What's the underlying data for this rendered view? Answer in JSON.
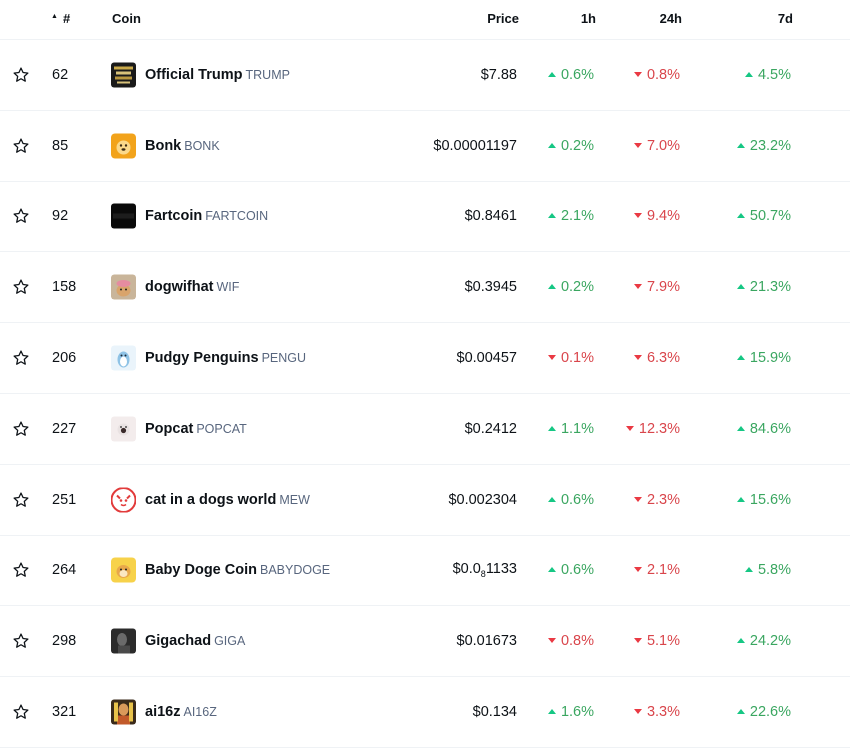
{
  "header": {
    "rank": "#",
    "coin": "Coin",
    "price": "Price",
    "h1": "1h",
    "h24": "24h",
    "d7": "7d"
  },
  "colors": {
    "up": "#16c784",
    "down": "#ea3943"
  },
  "rows": [
    {
      "rank": "62",
      "name": "Official Trump",
      "symbol": "TRUMP",
      "price": "$7.88",
      "h1": "0.6%",
      "h1_dir": "up",
      "h24": "0.8%",
      "h24_dir": "down",
      "d7": "4.5%",
      "d7_dir": "up",
      "logo": "trump-logo-icon"
    },
    {
      "rank": "85",
      "name": "Bonk",
      "symbol": "BONK",
      "price": "$0.00001197",
      "h1": "0.2%",
      "h1_dir": "up",
      "h24": "7.0%",
      "h24_dir": "down",
      "d7": "23.2%",
      "d7_dir": "up",
      "logo": "bonk-logo-icon"
    },
    {
      "rank": "92",
      "name": "Fartcoin",
      "symbol": "FARTCOIN",
      "price": "$0.8461",
      "h1": "2.1%",
      "h1_dir": "up",
      "h24": "9.4%",
      "h24_dir": "down",
      "d7": "50.7%",
      "d7_dir": "up",
      "logo": "fartcoin-logo-icon"
    },
    {
      "rank": "158",
      "name": "dogwifhat",
      "symbol": "WIF",
      "price": "$0.3945",
      "h1": "0.2%",
      "h1_dir": "up",
      "h24": "7.9%",
      "h24_dir": "down",
      "d7": "21.3%",
      "d7_dir": "up",
      "logo": "wif-logo-icon"
    },
    {
      "rank": "206",
      "name": "Pudgy Penguins",
      "symbol": "PENGU",
      "price": "$0.00457",
      "h1": "0.1%",
      "h1_dir": "down",
      "h24": "6.3%",
      "h24_dir": "down",
      "d7": "15.9%",
      "d7_dir": "up",
      "logo": "pengu-logo-icon"
    },
    {
      "rank": "227",
      "name": "Popcat",
      "symbol": "POPCAT",
      "price": "$0.2412",
      "h1": "1.1%",
      "h1_dir": "up",
      "h24": "12.3%",
      "h24_dir": "down",
      "d7": "84.6%",
      "d7_dir": "up",
      "logo": "popcat-logo-icon"
    },
    {
      "rank": "251",
      "name": "cat in a dogs world",
      "symbol": "MEW",
      "price": "$0.002304",
      "h1": "0.6%",
      "h1_dir": "up",
      "h24": "2.3%",
      "h24_dir": "down",
      "d7": "15.6%",
      "d7_dir": "up",
      "logo": "mew-logo-icon"
    },
    {
      "rank": "264",
      "name": "Baby Doge Coin",
      "symbol": "BABYDOGE",
      "price_main": "$0.0",
      "price_sub": "8",
      "price_tail": "1133",
      "h1": "0.6%",
      "h1_dir": "up",
      "h24": "2.1%",
      "h24_dir": "down",
      "d7": "5.8%",
      "d7_dir": "up",
      "logo": "babydoge-logo-icon"
    },
    {
      "rank": "298",
      "name": "Gigachad",
      "symbol": "GIGA",
      "price": "$0.01673",
      "h1": "0.8%",
      "h1_dir": "down",
      "h24": "5.1%",
      "h24_dir": "down",
      "d7": "24.2%",
      "d7_dir": "up",
      "logo": "giga-logo-icon"
    },
    {
      "rank": "321",
      "name": "ai16z",
      "symbol": "AI16Z",
      "price": "$0.134",
      "h1": "1.6%",
      "h1_dir": "up",
      "h24": "3.3%",
      "h24_dir": "down",
      "d7": "22.6%",
      "d7_dir": "up",
      "logo": "ai16z-logo-icon"
    }
  ]
}
